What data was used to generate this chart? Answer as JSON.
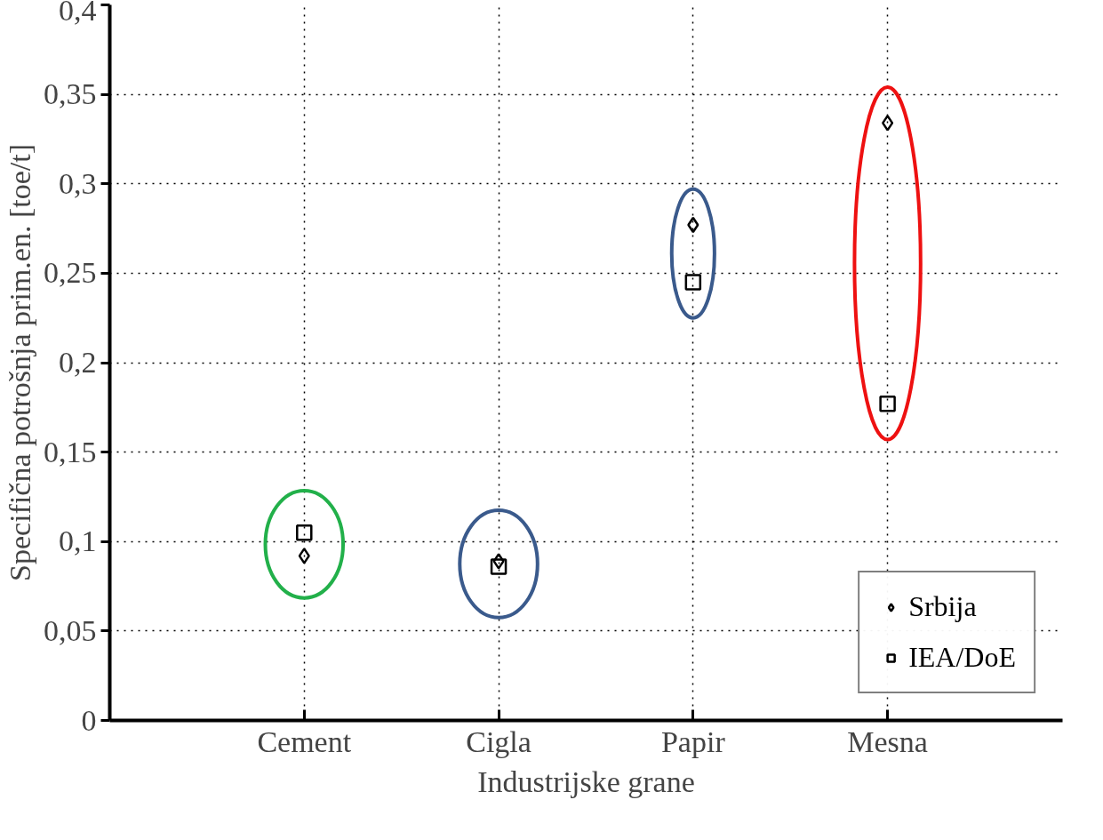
{
  "chart_data": {
    "type": "scatter",
    "xlabel": "Industrijske grane",
    "ylabel": "Specifična potrošnja prim.en. [toe/t]",
    "categories": [
      "Cement",
      "Cigla",
      "Papir",
      "Mesna"
    ],
    "series": [
      {
        "name": "Srbija",
        "color": "#000000",
        "marker": "diamond",
        "values": [
          0.092,
          0.089,
          0.277,
          0.334
        ]
      },
      {
        "name": "IEA/DoE",
        "color": "#000000",
        "marker": "square",
        "values": [
          0.105,
          0.086,
          0.245,
          0.177
        ]
      }
    ],
    "ylim": [
      0,
      0.4
    ],
    "yticks": [
      {
        "value": 0,
        "label": "0"
      },
      {
        "value": 0.05,
        "label": "0,05"
      },
      {
        "value": 0.1,
        "label": "0,1"
      },
      {
        "value": 0.15,
        "label": "0,15"
      },
      {
        "value": 0.2,
        "label": "0,2"
      },
      {
        "value": 0.25,
        "label": "0,25"
      },
      {
        "value": 0.3,
        "label": "0,3"
      },
      {
        "value": 0.35,
        "label": "0,35"
      },
      {
        "value": 0.4,
        "label": "0,4"
      }
    ],
    "grid": true,
    "legend": "bottom right"
  }
}
